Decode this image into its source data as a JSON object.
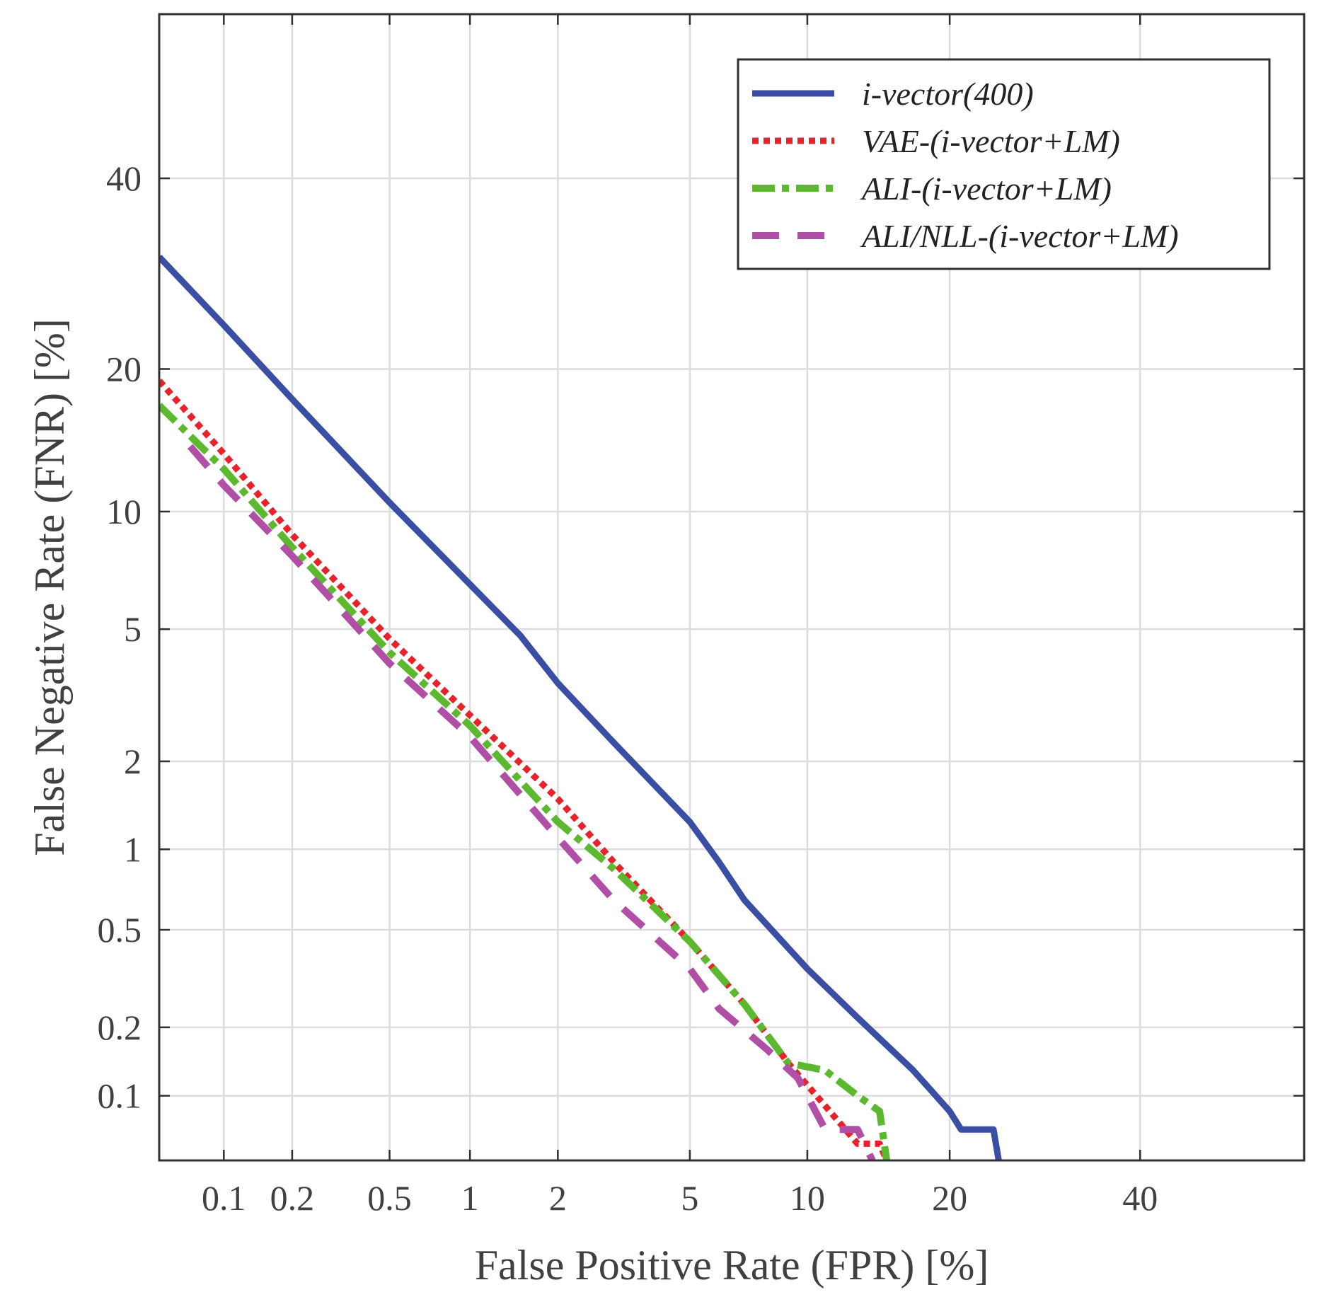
{
  "chart_data": {
    "type": "line",
    "title": "",
    "xlabel": "False Positive Rate (FPR) [%]",
    "ylabel": "False Negative Rate (FNR) [%]",
    "x_scale": "probit",
    "y_scale": "probit",
    "xlim": [
      0.05,
      60
    ],
    "ylim": [
      0.05,
      60
    ],
    "x_ticks": [
      0.1,
      0.2,
      0.5,
      1,
      2,
      5,
      10,
      20,
      40
    ],
    "x_tick_labels": [
      "0.1",
      "0.2",
      "0.5",
      "1",
      "2",
      "5",
      "10",
      "20",
      "40"
    ],
    "y_ticks": [
      0.1,
      0.2,
      0.5,
      1,
      2,
      5,
      10,
      20,
      40
    ],
    "y_tick_labels": [
      "0.1",
      "0.2",
      "0.5",
      "1",
      "2",
      "5",
      "10",
      "20",
      "40"
    ],
    "grid": true,
    "legend_position": "top-right",
    "series": [
      {
        "name": "i-vector(400)",
        "color": "#3a4fa3",
        "style": "solid",
        "points": [
          [
            0.05,
            31
          ],
          [
            0.1,
            24
          ],
          [
            0.2,
            17.5
          ],
          [
            0.5,
            10.5
          ],
          [
            1,
            6.6
          ],
          [
            1.5,
            4.8
          ],
          [
            2,
            3.5
          ],
          [
            3,
            2.3
          ],
          [
            5,
            1.25
          ],
          [
            6,
            0.9
          ],
          [
            7,
            0.65
          ],
          [
            10,
            0.35
          ],
          [
            13,
            0.22
          ],
          [
            17,
            0.13
          ],
          [
            20,
            0.085
          ],
          [
            21,
            0.07
          ],
          [
            24,
            0.07
          ],
          [
            24.5,
            0.05
          ]
        ]
      },
      {
        "name": "VAE-(i-vector+LM)",
        "color": "#e8222a",
        "style": "dotted",
        "points": [
          [
            0.05,
            19
          ],
          [
            0.1,
            13.5
          ],
          [
            0.2,
            8.8
          ],
          [
            0.5,
            4.7
          ],
          [
            1,
            2.8
          ],
          [
            2,
            1.5
          ],
          [
            3,
            0.9
          ],
          [
            5,
            0.45
          ],
          [
            7,
            0.25
          ],
          [
            9,
            0.14
          ],
          [
            11,
            0.09
          ],
          [
            13,
            0.06
          ],
          [
            14.5,
            0.06
          ],
          [
            15,
            0.05
          ]
        ]
      },
      {
        "name": "ALI-(i-vector+LM)",
        "color": "#5bb82f",
        "style": "dash-dot",
        "points": [
          [
            0.05,
            17
          ],
          [
            0.1,
            12.5
          ],
          [
            0.2,
            8.2
          ],
          [
            0.5,
            4.3
          ],
          [
            1,
            2.6
          ],
          [
            2,
            1.25
          ],
          [
            3,
            0.85
          ],
          [
            5,
            0.45
          ],
          [
            7,
            0.25
          ],
          [
            9,
            0.14
          ],
          [
            11,
            0.13
          ],
          [
            13,
            0.1
          ],
          [
            14.5,
            0.085
          ],
          [
            15,
            0.05
          ]
        ]
      },
      {
        "name": "ALI/NLL-(i-vector+LM)",
        "color": "#b04fa5",
        "style": "dashed",
        "points": [
          [
            0.07,
            14
          ],
          [
            0.1,
            11.5
          ],
          [
            0.2,
            7.8
          ],
          [
            0.5,
            4.0
          ],
          [
            1,
            2.4
          ],
          [
            2,
            1.1
          ],
          [
            3,
            0.65
          ],
          [
            5,
            0.35
          ],
          [
            6,
            0.24
          ],
          [
            8,
            0.16
          ],
          [
            9.5,
            0.12
          ],
          [
            11,
            0.07
          ],
          [
            13,
            0.07
          ],
          [
            14,
            0.05
          ]
        ]
      }
    ]
  }
}
